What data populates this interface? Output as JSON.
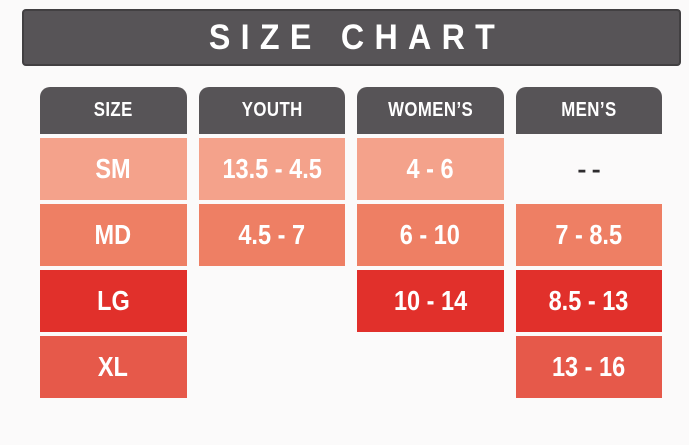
{
  "title": "SIZE CHART",
  "colors": {
    "background": "#fbfafa",
    "header_bar": "#575457",
    "row_sm": "#f4a28b",
    "row_md": "#ee7f64",
    "row_lg": "#e1302b",
    "row_xl": "#e6594a",
    "cell_text": "#ffffff",
    "dash_text": "#2e2c2e"
  },
  "chart_data": {
    "type": "table",
    "title": "SIZE CHART",
    "columns": [
      "SIZE",
      "YOUTH",
      "WOMEN’S",
      "MEN’S"
    ],
    "rows": [
      [
        "SM",
        "13.5 - 4.5",
        "4 - 6",
        "--"
      ],
      [
        "MD",
        "4.5 - 7",
        "6 - 10",
        "7 - 8.5"
      ],
      [
        "LG",
        "",
        "10 - 14",
        "8.5 - 13"
      ],
      [
        "XL",
        "",
        "",
        "13 - 16"
      ]
    ],
    "notes": "Rows colored by size: SM light salmon, MD coral, LG red, XL coral-red. Empty cells are blank white. Men's SM shows two dashes (no size)."
  }
}
